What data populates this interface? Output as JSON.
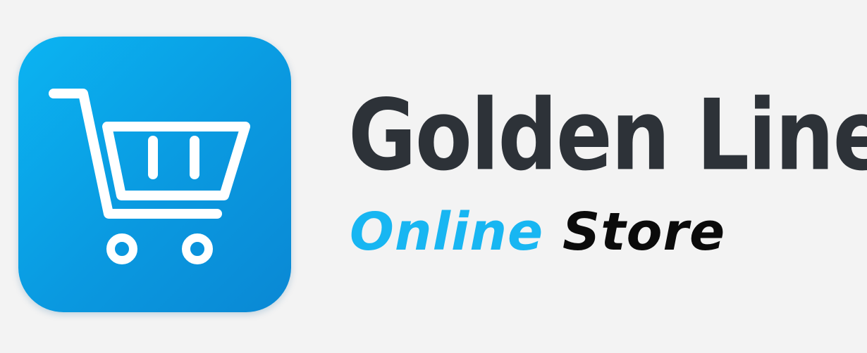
{
  "logo": {
    "tile_color": "#0aa6e8",
    "icon": "shopping-cart-icon",
    "icon_color": "#ffffff"
  },
  "brand": {
    "name": "Golden Line",
    "name_color": "#2d3238",
    "tagline_word_1": "Online",
    "tagline_word_1_color": "#18b6f2",
    "tagline_word_2": "Store",
    "tagline_word_2_color": "#0b0b0b"
  }
}
